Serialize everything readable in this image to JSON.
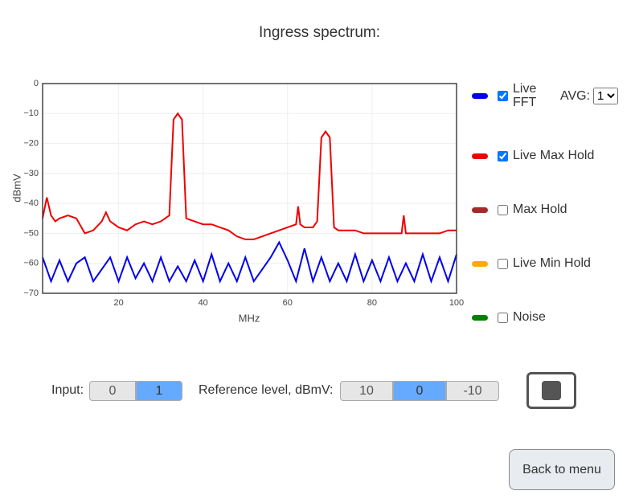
{
  "title": "Ingress spectrum:",
  "chart_data": {
    "type": "line",
    "x_label": "MHz",
    "y_label": "dBmV",
    "xlim": [
      2,
      100
    ],
    "ylim": [
      -70,
      0
    ],
    "xticks": [
      20,
      40,
      60,
      80,
      100
    ],
    "yticks": [
      0,
      {
        "value": -10,
        "label": "−10"
      },
      {
        "value": -20,
        "label": "−20"
      },
      {
        "value": -30,
        "label": "−30"
      },
      {
        "value": -40,
        "label": "−40"
      },
      {
        "value": -50,
        "label": "−50"
      },
      {
        "value": -60,
        "label": "−60"
      },
      {
        "value": -70,
        "label": "−70"
      }
    ],
    "grid": true,
    "series": [
      {
        "name": "Live FFT",
        "color": "#0000ee",
        "checked": true,
        "x": [
          2,
          4,
          6,
          8,
          10,
          12,
          14,
          16,
          18,
          20,
          22,
          24,
          26,
          28,
          30,
          32,
          34,
          36,
          38,
          40,
          42,
          44,
          46,
          48,
          50,
          52,
          54,
          56,
          58,
          60,
          62,
          64,
          66,
          68,
          70,
          72,
          74,
          76,
          78,
          80,
          82,
          84,
          86,
          88,
          90,
          92,
          94,
          96,
          98,
          100
        ],
        "values": [
          -58,
          -66,
          -59,
          -66,
          -60,
          -58,
          -66,
          -62,
          -58,
          -66,
          -58,
          -65,
          -60,
          -66,
          -58,
          -66,
          -61,
          -66,
          -59,
          -66,
          -57,
          -66,
          -60,
          -66,
          -58,
          -66,
          -62,
          -58,
          -53,
          -59,
          -66,
          -55,
          -66,
          -58,
          -66,
          -60,
          -66,
          -57,
          -66,
          -59,
          -66,
          -58,
          -66,
          -60,
          -66,
          -57,
          -66,
          -58,
          -66,
          -57
        ]
      },
      {
        "name": "Live Max Hold",
        "color": "#ee0000",
        "checked": true,
        "x": [
          2,
          3,
          4,
          5,
          6,
          8,
          10,
          12,
          14,
          16,
          17,
          18,
          20,
          22,
          24,
          26,
          28,
          30,
          32,
          33,
          34,
          35,
          36,
          38,
          40,
          42,
          44,
          46,
          48,
          50,
          52,
          54,
          56,
          58,
          60,
          62,
          62.5,
          63,
          64,
          66,
          67,
          68,
          69,
          70,
          71,
          72,
          74,
          76,
          78,
          80,
          82,
          84,
          86,
          87,
          87.5,
          88,
          90,
          92,
          94,
          96,
          98,
          100
        ],
        "values": [
          -45,
          -38,
          -44,
          -46,
          -45,
          -44,
          -45,
          -50,
          -49,
          -46,
          -43,
          -46,
          -48,
          -49,
          -47,
          -46,
          -47,
          -46,
          -44,
          -12,
          -10,
          -12,
          -45,
          -46,
          -47,
          -47,
          -48,
          -49,
          -51,
          -52,
          -52,
          -51,
          -50,
          -49,
          -48,
          -47,
          -41,
          -47,
          -48,
          -48,
          -46,
          -18,
          -16,
          -18,
          -48,
          -49,
          -49,
          -49,
          -50,
          -50,
          -50,
          -50,
          -50,
          -50,
          -44,
          -50,
          -50,
          -50,
          -50,
          -50,
          -49,
          -49
        ]
      }
    ]
  },
  "legend_extra": [
    {
      "label": "Max Hold",
      "color": "#a52a2a",
      "checked": false
    },
    {
      "label": "Live Min Hold",
      "color": "#ffaa00",
      "checked": false
    },
    {
      "label": "Noise",
      "color": "#008000",
      "checked": false
    }
  ],
  "avg": {
    "label": "AVG:",
    "options": [
      "1"
    ],
    "selected": 0
  },
  "input": {
    "label": "Input:",
    "options": [
      "0",
      "1"
    ],
    "selected": 1
  },
  "reference_level": {
    "label": "Reference level, dBmV:",
    "options": [
      "10",
      "0",
      "-10"
    ],
    "selected": 1
  },
  "back_button": "Back to menu"
}
